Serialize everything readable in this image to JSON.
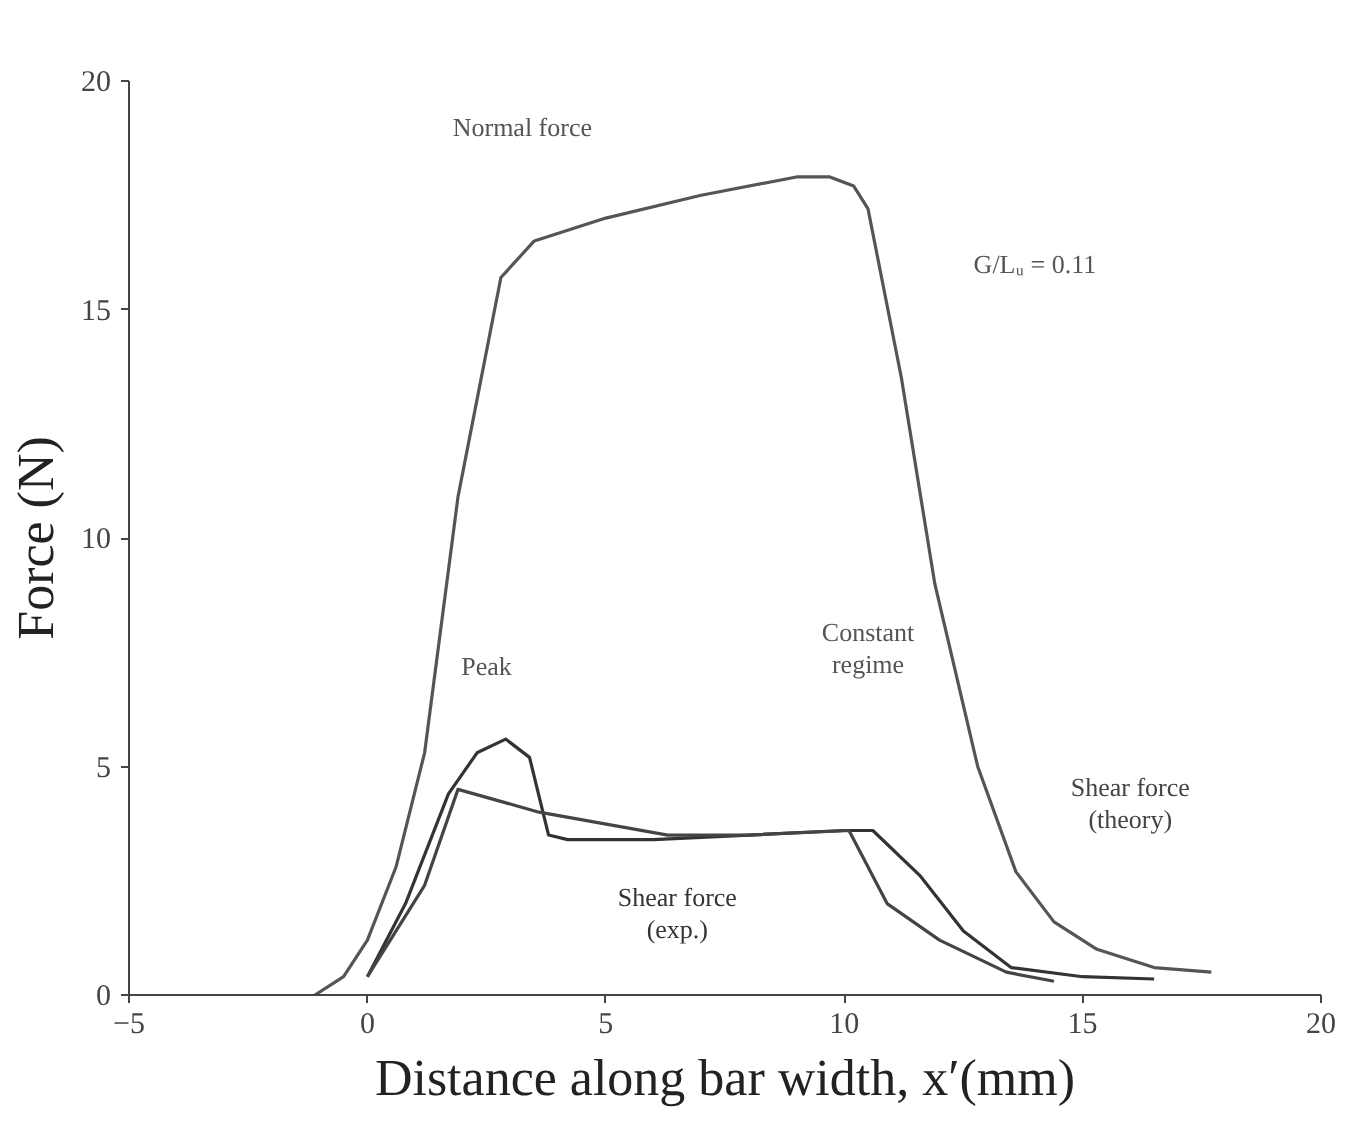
{
  "chart_data": {
    "type": "line",
    "xlabel": "Distance along bar width, x′(mm)",
    "ylabel": "Force (N)",
    "xlim": [
      -5,
      20
    ],
    "ylim": [
      0,
      20
    ],
    "xticks": [
      -5,
      0,
      5,
      10,
      15,
      20
    ],
    "yticks": [
      0,
      5,
      10,
      15,
      20
    ],
    "grid": false,
    "legend": false,
    "marker": "none",
    "line_style": "solid",
    "series": [
      {
        "name": "Normal force",
        "color": "#555555",
        "x": [
          -1.1,
          -0.5,
          0,
          0.6,
          1.2,
          1.9,
          2.5,
          2.8,
          3.5,
          5,
          7,
          9,
          9.7,
          10.2,
          10.5,
          11.2,
          11.9,
          12.8,
          13.6,
          14.4,
          15.3,
          16.5,
          17.7
        ],
        "values": [
          0,
          0.4,
          1.2,
          2.8,
          5.3,
          10.9,
          14.1,
          15.7,
          16.5,
          17.0,
          17.5,
          17.9,
          17.9,
          17.7,
          17.2,
          13.5,
          9.0,
          5.0,
          2.7,
          1.6,
          1.0,
          0.6,
          0.5
        ]
      },
      {
        "name": "Shear force\n(exp.)",
        "color": "#333333",
        "x": [
          0,
          0.8,
          1.7,
          2.3,
          2.9,
          3.4,
          3.8,
          4.2,
          6,
          8,
          10,
          10.6,
          11.6,
          12.5,
          13.5,
          15,
          16.5
        ],
        "values": [
          0.4,
          2.0,
          4.4,
          5.3,
          5.6,
          5.2,
          3.5,
          3.4,
          3.4,
          3.5,
          3.6,
          3.6,
          2.6,
          1.4,
          0.6,
          0.4,
          0.35
        ]
      },
      {
        "name": "Shear force\n(theory)",
        "color": "#444444",
        "x": [
          0,
          1.2,
          1.9,
          3.6,
          6.3,
          8,
          10.1,
          10.9,
          12.0,
          13.4,
          14.4
        ],
        "values": [
          0.4,
          2.4,
          4.5,
          4.0,
          3.5,
          3.5,
          3.6,
          2.0,
          1.2,
          0.5,
          0.3
        ]
      }
    ],
    "annotations": [
      "G/Lᵤ = 0.11",
      "Peak",
      "Constant\nregime"
    ]
  }
}
